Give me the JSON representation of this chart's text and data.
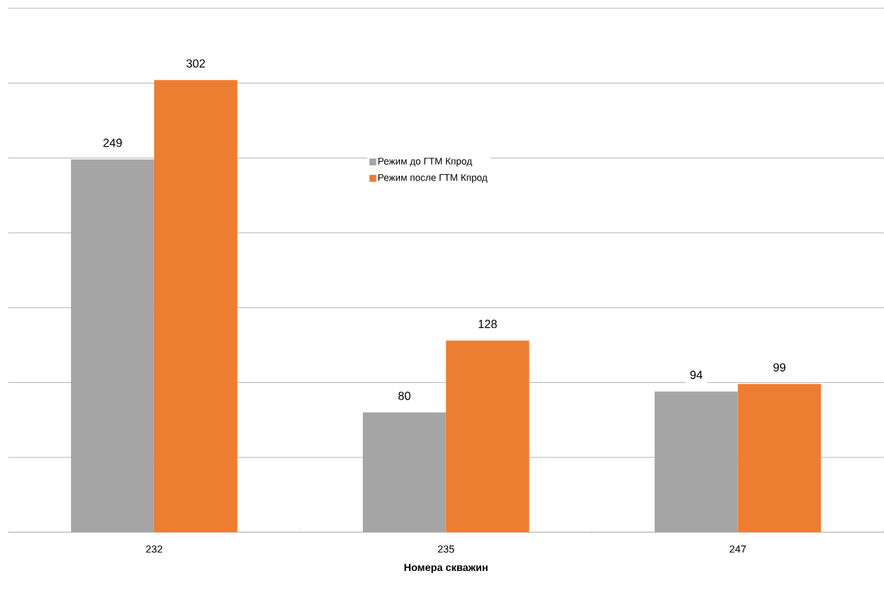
{
  "chart_data": {
    "type": "bar",
    "xlabel": "Номера скважин",
    "categories": [
      "232",
      "235",
      "247"
    ],
    "series": [
      {
        "name": "Режим до ГТМ Кпрод",
        "color": "#a5a5a5",
        "values": [
          249,
          80,
          94
        ]
      },
      {
        "name": "Режим после ГТМ Кпрод",
        "color": "#ed7d31",
        "values": [
          302,
          128,
          99
        ]
      }
    ],
    "ylim": [
      0,
      350
    ],
    "yticks": [
      {
        "value": 0,
        "label": null
      },
      {
        "value": 50,
        "label": null
      },
      {
        "value": 100,
        "label": null
      },
      {
        "value": 150,
        "label": null
      },
      {
        "value": 200,
        "label": null
      },
      {
        "value": 250,
        "label": null
      },
      {
        "value": 300,
        "label": null
      },
      {
        "value": 350,
        "label": null
      }
    ],
    "grid": "y",
    "legend": "center",
    "data_labels": true
  }
}
